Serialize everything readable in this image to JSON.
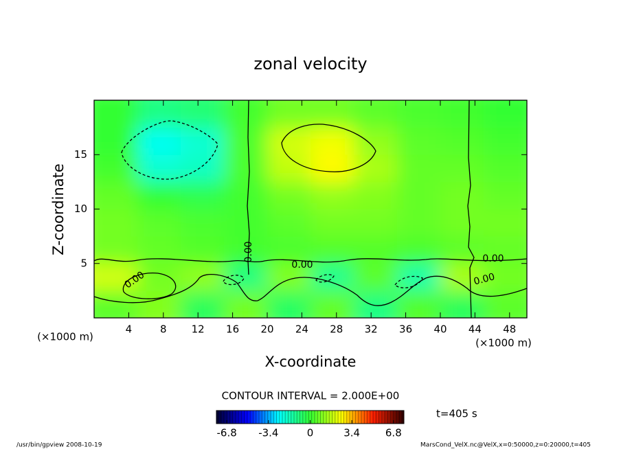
{
  "chart_data": {
    "type": "contour",
    "title": "zonal velocity",
    "x_label": "X-coordinate",
    "y_label": "Z-coordinate",
    "x_unit": "(×1000 m)",
    "y_unit": "(×1000 m)",
    "xlim": [
      0,
      50
    ],
    "ylim": [
      0,
      20
    ],
    "xticks": [
      4,
      8,
      12,
      16,
      20,
      24,
      28,
      32,
      36,
      40,
      44,
      48
    ],
    "yticks": [
      5,
      10,
      15
    ],
    "x_edges": [
      0,
      5,
      10,
      15,
      20,
      25,
      30,
      35,
      40,
      45,
      50
    ],
    "z_edges": [
      0,
      2.5,
      5,
      7.5,
      10,
      12.5,
      15,
      17.5,
      20
    ],
    "field": [
      [
        0.5,
        1.0,
        -0.5,
        0.8,
        -0.6,
        0.6,
        -1.0,
        0.4,
        -0.5,
        0.5
      ],
      [
        2.0,
        0.8,
        1.2,
        -1.0,
        1.0,
        -1.2,
        0.5,
        -1.5,
        1.5,
        0.8
      ],
      [
        0.8,
        0.6,
        0.4,
        0.2,
        0.3,
        0.4,
        0.4,
        0.3,
        0.5,
        0.6
      ],
      [
        0.8,
        0.5,
        0.3,
        0.2,
        0.5,
        0.8,
        0.8,
        0.6,
        0.8,
        0.8
      ],
      [
        0.6,
        0.0,
        -0.3,
        0.2,
        0.8,
        1.2,
        1.0,
        0.6,
        0.8,
        0.6
      ],
      [
        0.2,
        -2.0,
        -1.8,
        0.3,
        1.8,
        2.6,
        1.5,
        0.6,
        0.6,
        0.4
      ],
      [
        0.0,
        -2.4,
        -2.0,
        0.3,
        2.0,
        2.4,
        1.2,
        0.5,
        0.4,
        0.2
      ],
      [
        0.0,
        -1.0,
        -0.8,
        0.2,
        0.8,
        0.8,
        0.5,
        0.3,
        0.2,
        0.0
      ]
    ],
    "colormap": [
      "#000030",
      "#0000ff",
      "#00ffff",
      "#33ff33",
      "#ffff00",
      "#ff2000",
      "#300000"
    ],
    "clim": [
      -7.65,
      7.65
    ],
    "cticks": [
      -6.8,
      -3.4,
      0,
      3.4,
      6.8
    ],
    "contour_labels": [
      "0.00",
      "0.00",
      "0.00",
      "0.00",
      "0.00"
    ],
    "contour_interval": "CONTOUR INTERVAL = 2.000E+00",
    "time_label": "t=405 s",
    "footer_left": "/usr/bin/gpview   2008-10-19",
    "footer_right": "MarsCond_VelX.nc@VelX,x=0:50000,z=0:20000,t=405"
  }
}
